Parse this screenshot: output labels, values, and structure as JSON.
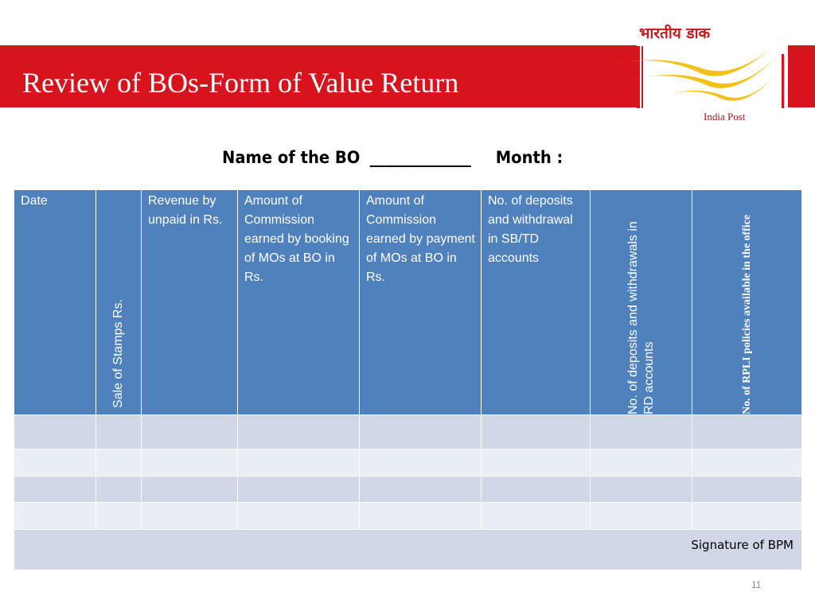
{
  "slide": {
    "title": "Review of BOs-Form of Value Return",
    "page_number": "11",
    "colors": {
      "banner": "#d7141e",
      "header": "#4f81bd",
      "row_dark": "#d0d8e8",
      "row_light": "#e9edf4",
      "logo_yellow": "#f2c21b"
    }
  },
  "logo": {
    "hindi": "भारतीय डाक",
    "english": "India Post",
    "icon": "india-post-logo"
  },
  "form": {
    "name_label": "Name of the BO",
    "name_blank": "_____________",
    "month_label": "Month :"
  },
  "table": {
    "headers": [
      "Date",
      "Sale of Stamps  Rs.",
      "Revenue by unpaid in Rs.",
      "Amount of Commission earned by booking of MOs at BO in Rs.",
      "Amount of Commission earned by payment of MOs at BO in Rs.",
      "No. of deposits and withdrawal in SB/TD accounts",
      "No. of deposits  and withdrawals in RD accounts",
      "No. of RPLI policies available in the office"
    ],
    "signature": "Signature of BPM"
  }
}
